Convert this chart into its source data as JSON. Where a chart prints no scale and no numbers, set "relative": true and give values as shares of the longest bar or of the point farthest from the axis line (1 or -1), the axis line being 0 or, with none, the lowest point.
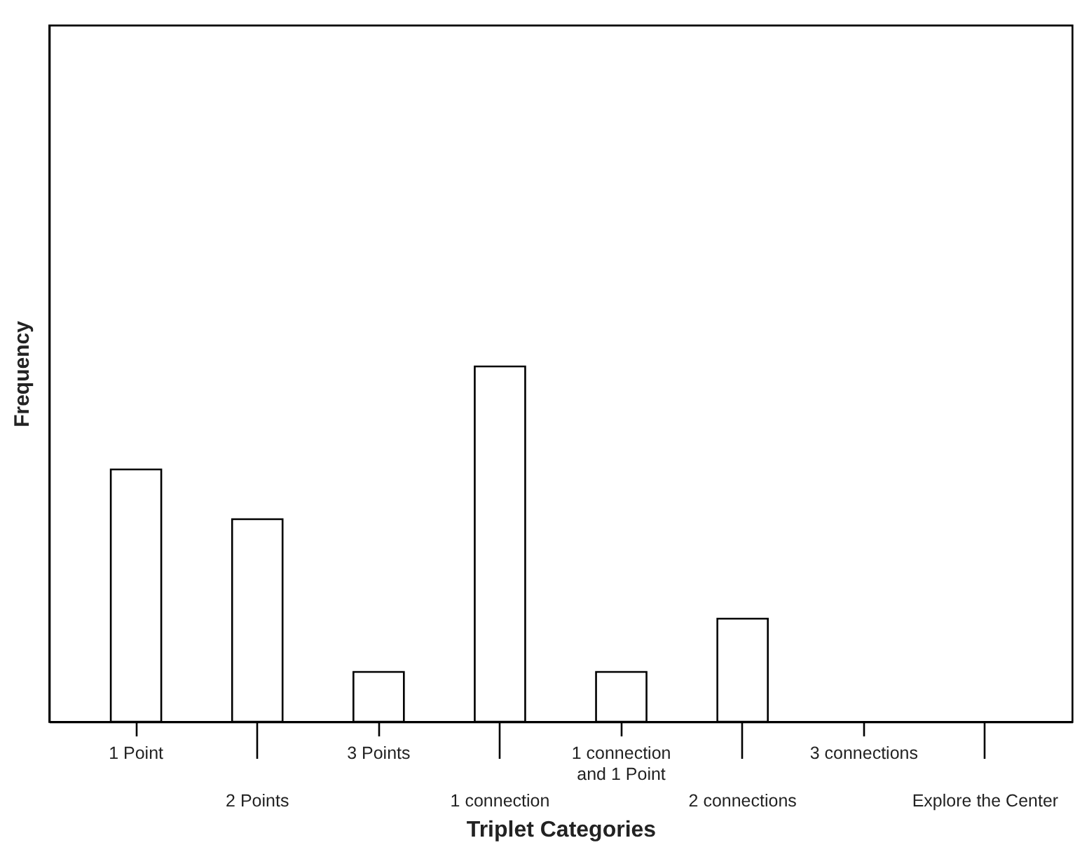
{
  "chart_data": {
    "type": "bar",
    "xlabel": "Triplet Categories",
    "ylabel": "Frequency",
    "categories": [
      "1 Point",
      "2 Points",
      "3 Points",
      "1 connection",
      "1 connection and 1 Point",
      "2 connections",
      "3 connections",
      "Explore the Center"
    ],
    "series": [
      {
        "color": "#ffffff",
        "values": [
          0.71,
          0.57,
          0.14,
          1,
          0.14,
          0.29,
          0,
          0
        ]
      }
    ],
    "relative": true,
    "tick_labels": "x",
    "grid": false
  }
}
